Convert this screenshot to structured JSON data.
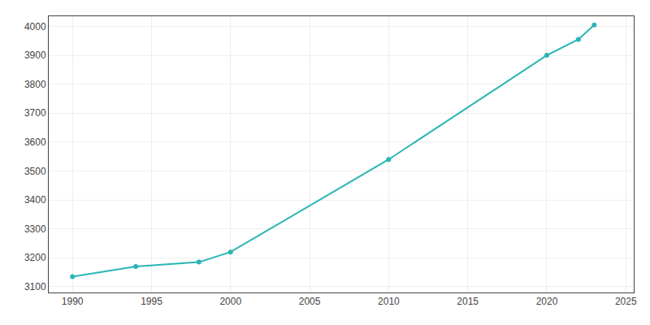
{
  "chart_data": {
    "type": "line",
    "x": [
      1990,
      1994,
      1998,
      2000,
      2010,
      2020,
      2022,
      2023
    ],
    "values": [
      3135,
      3170,
      3185,
      3220,
      3540,
      3900,
      3955,
      4005
    ],
    "color": "#2ab5b5",
    "marker": "circle",
    "xlim": [
      1988.5,
      2025.5
    ],
    "ylim": [
      3080,
      4035
    ],
    "xticks": [
      1990,
      1995,
      2000,
      2005,
      2010,
      2015,
      2020,
      2025
    ],
    "yticks": [
      3100,
      3200,
      3300,
      3400,
      3500,
      3600,
      3700,
      3800,
      3900,
      4000
    ],
    "grid": true
  }
}
